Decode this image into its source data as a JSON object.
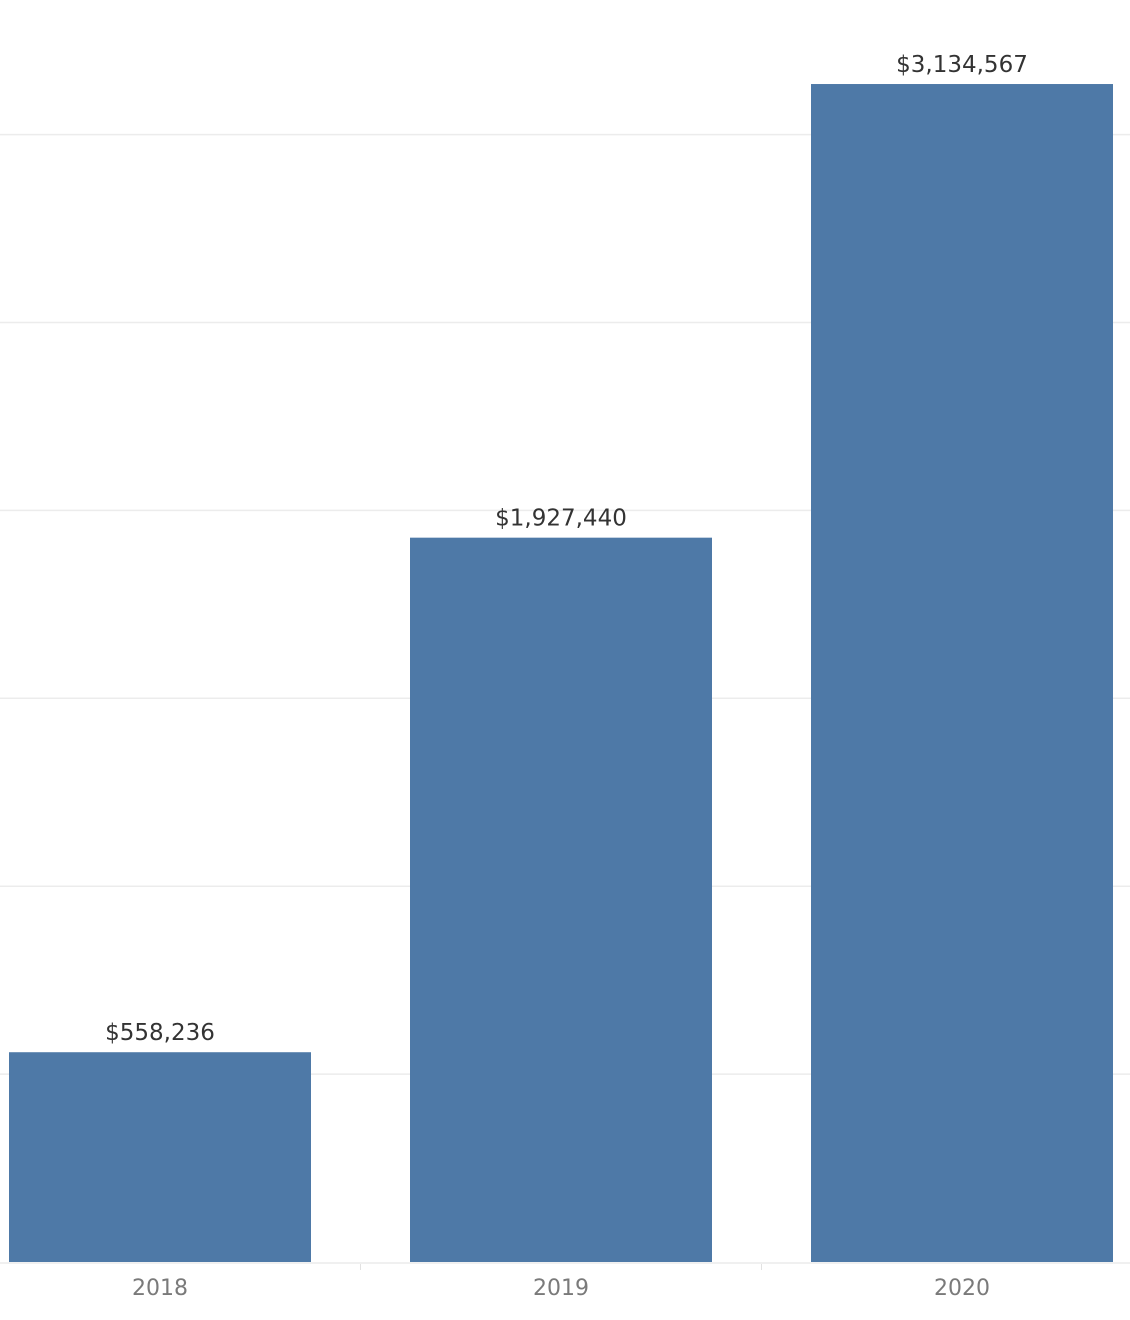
{
  "chart_data": {
    "type": "bar",
    "categories": [
      "2018",
      "2019",
      "2020"
    ],
    "values": [
      558236,
      1927440,
      3134567
    ],
    "value_labels": [
      "$558,236",
      "$1,927,440",
      "$3,134,567"
    ],
    "title": "",
    "xlabel": "",
    "ylabel": "",
    "ylim": [
      0,
      3350000
    ],
    "y_gridlines": [
      500000,
      1000000,
      1500000,
      2000000,
      2500000,
      3000000
    ],
    "grid": true,
    "legend": "none",
    "bar_color": "#4e79a7"
  }
}
